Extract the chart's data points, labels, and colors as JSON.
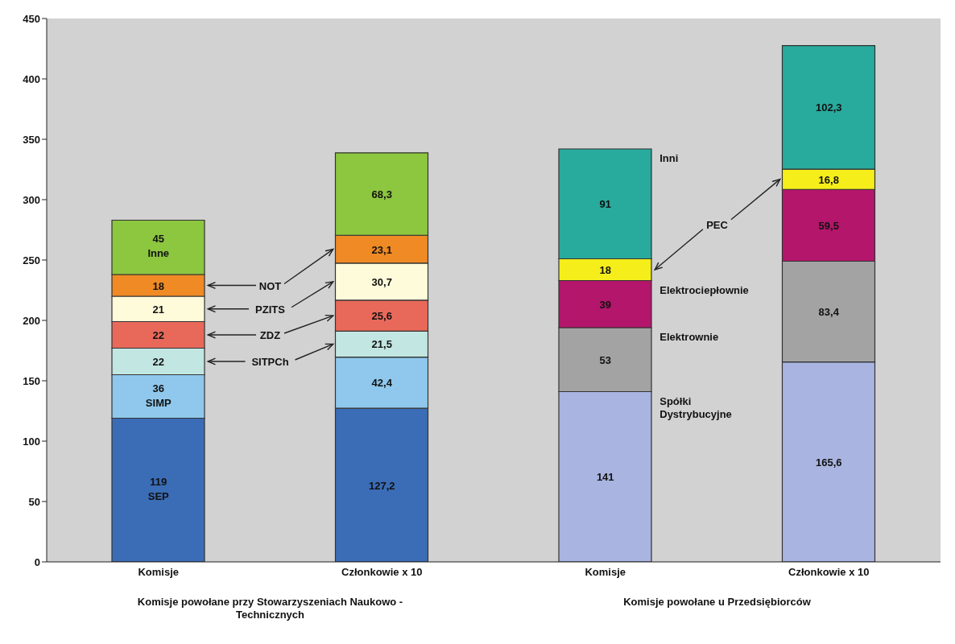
{
  "chart_data": {
    "type": "bar",
    "stacked": true,
    "categories": [
      "Komisje",
      "Członkowie x 10",
      "Komisje",
      "Członkowie x 10"
    ],
    "ylim": [
      0,
      450
    ],
    "yticks": [
      0,
      50,
      100,
      150,
      200,
      250,
      300,
      350,
      400,
      450
    ],
    "annotations": [
      "Komisje powołane przy Stowarzyszeniach Naukowo - Technicznych",
      "Komisje powołane u Przedsiębiorców"
    ],
    "series": [
      {
        "name": "SEP",
        "color": "#3b6cb6",
        "values": [
          119,
          127.2,
          null,
          null
        ],
        "value_labels": [
          "119",
          "127,2",
          null,
          null
        ]
      },
      {
        "name": "SIMP",
        "color": "#8fc8ec",
        "values": [
          36,
          42.4,
          null,
          null
        ],
        "value_labels": [
          "36",
          "42,4",
          null,
          null
        ]
      },
      {
        "name": "SITPCh",
        "color": "#c2e6e1",
        "values": [
          22,
          21.5,
          null,
          null
        ],
        "value_labels": [
          "22",
          "21,5",
          null,
          null
        ]
      },
      {
        "name": "ZDZ",
        "color": "#e8695a",
        "values": [
          22,
          25.6,
          null,
          null
        ],
        "value_labels": [
          "22",
          "25,6",
          null,
          null
        ]
      },
      {
        "name": "PZITS",
        "color": "#fdfbda",
        "values": [
          21,
          30.7,
          null,
          null
        ],
        "value_labels": [
          "21",
          "30,7",
          null,
          null
        ]
      },
      {
        "name": "NOT",
        "color": "#ef8a24",
        "values": [
          18,
          23.1,
          null,
          null
        ],
        "value_labels": [
          "18",
          "23,1",
          null,
          null
        ]
      },
      {
        "name": "Inne",
        "color": "#8dc63f",
        "values": [
          45,
          68.3,
          null,
          null
        ],
        "value_labels": [
          "45",
          "68,3",
          null,
          null
        ]
      },
      {
        "name": "Spółki Dystrybucyjne",
        "color": "#a9b4e0",
        "values": [
          null,
          null,
          141,
          165.6
        ],
        "value_labels": [
          null,
          null,
          "141",
          "165,6"
        ]
      },
      {
        "name": "Elektrownie",
        "color": "#a3a3a3",
        "values": [
          null,
          null,
          53,
          83.4
        ],
        "value_labels": [
          null,
          null,
          "53",
          "83,4"
        ]
      },
      {
        "name": "Elektrociepłownie",
        "color": "#b3166b",
        "values": [
          null,
          null,
          39,
          59.5
        ],
        "value_labels": [
          null,
          null,
          "39",
          "59,5"
        ]
      },
      {
        "name": "PEC",
        "color": "#f5ee1a",
        "values": [
          null,
          null,
          18,
          16.8
        ],
        "value_labels": [
          null,
          null,
          "18",
          "16,8"
        ]
      },
      {
        "name": "Inni",
        "color": "#28aa9d",
        "values": [
          null,
          null,
          91,
          102.3
        ],
        "value_labels": [
          null,
          null,
          "91",
          "102,3"
        ]
      }
    ]
  }
}
